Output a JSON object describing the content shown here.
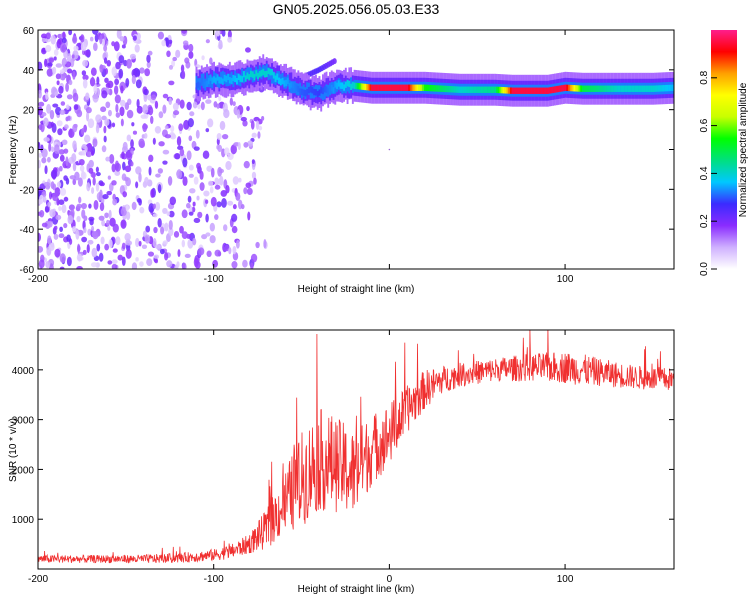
{
  "figure_title": "GN05.2025.056.05.03.E33",
  "chart_data": [
    {
      "type": "heatmap",
      "title": "GN05.2025.056.05.03.E33",
      "xlabel": "Height of straight line (km)",
      "ylabel": "Frequency (Hz)",
      "xlim": [
        -200,
        162
      ],
      "ylim": [
        -60,
        60
      ],
      "x_ticks": [
        -200,
        -100,
        0,
        100
      ],
      "x_tick_labels": [
        "-200",
        "-100",
        "",
        "100"
      ],
      "y_ticks": [
        -60,
        -40,
        -20,
        0,
        20,
        40,
        60
      ],
      "y_tick_labels": [
        "-60",
        "-40",
        "-20",
        "0",
        "20",
        "40",
        "60"
      ],
      "grid": false,
      "colorbar": {
        "label": "Normalized spectral amplitude",
        "range": [
          0.0,
          1.0
        ],
        "ticks": [
          0.0,
          0.2,
          0.4,
          0.6,
          0.8
        ],
        "tick_labels": [
          "0.0",
          "0.2",
          "0.4",
          "0.6",
          "0.8"
        ],
        "colors": [
          "#ffffff",
          "#cfb0ff",
          "#8a2cff",
          "#3b2bff",
          "#00c8ff",
          "#00e080",
          "#00ff00",
          "#c8ff00",
          "#ffff00",
          "#ffa000",
          "#ff0000",
          "#ff1e8c"
        ]
      },
      "noise_region": {
        "x_range": [
          -200,
          -70
        ],
        "freq_range": [
          -60,
          60
        ],
        "amplitude": 0.15
      },
      "signal_track": {
        "x": [
          -110,
          -100,
          -90,
          -80,
          -70,
          -60,
          -50,
          -40,
          -30,
          -20,
          -10,
          0,
          10,
          20,
          40,
          60,
          70,
          80,
          90,
          100,
          110,
          130,
          150,
          162
        ],
        "frequency": [
          33,
          35,
          35,
          37,
          39,
          34,
          30,
          28,
          32,
          32,
          31,
          31,
          31,
          31,
          30,
          30,
          29.5,
          29.5,
          29.5,
          31,
          30.5,
          30.5,
          30.5,
          31
        ],
        "amplitude": [
          0.3,
          0.35,
          0.35,
          0.4,
          0.4,
          0.35,
          0.3,
          0.28,
          0.35,
          0.4,
          0.95,
          0.95,
          0.95,
          0.55,
          0.4,
          0.45,
          0.95,
          0.95,
          0.95,
          0.95,
          0.5,
          0.4,
          0.4,
          0.35
        ]
      },
      "signal_branch": {
        "x": [
          -60,
          -50,
          -40,
          -30
        ],
        "frequency": [
          32,
          36,
          40,
          45
        ],
        "amplitude": [
          0.2,
          0.22,
          0.25,
          0.2
        ]
      }
    },
    {
      "type": "line",
      "xlabel": "Height of straight line (km)",
      "ylabel": "SNR (10 * v/v)",
      "xlim": [
        -200,
        162
      ],
      "ylim": [
        0,
        4800
      ],
      "x_ticks": [
        -200,
        -100,
        0,
        100
      ],
      "x_tick_labels": [
        "-200",
        "-100",
        "0",
        "100"
      ],
      "y_ticks": [
        1000,
        2000,
        3000,
        4000
      ],
      "y_tick_labels": [
        "1000",
        "2000",
        "3000",
        "4000"
      ],
      "grid": false,
      "color": "#f03030",
      "series": [
        {
          "x": [
            -200,
            -180,
            -160,
            -140,
            -120,
            -100,
            -90,
            -80,
            -70,
            -60,
            -50,
            -40,
            -30,
            -20,
            -10,
            0,
            10,
            20,
            30,
            40,
            60,
            80,
            100,
            110,
            120,
            140,
            162
          ],
          "values": [
            200,
            200,
            200,
            200,
            220,
            280,
            350,
            500,
            800,
            1300,
            1800,
            2200,
            2100,
            1900,
            2400,
            2700,
            3200,
            3600,
            3800,
            3900,
            4000,
            4050,
            4050,
            4000,
            3950,
            3850,
            3800
          ],
          "noise_amplitude": [
            100,
            100,
            100,
            110,
            120,
            150,
            180,
            250,
            500,
            800,
            1200,
            1300,
            1200,
            1100,
            900,
            800,
            600,
            500,
            350,
            300,
            300,
            350,
            400,
            400,
            350,
            300,
            300
          ]
        }
      ]
    }
  ]
}
